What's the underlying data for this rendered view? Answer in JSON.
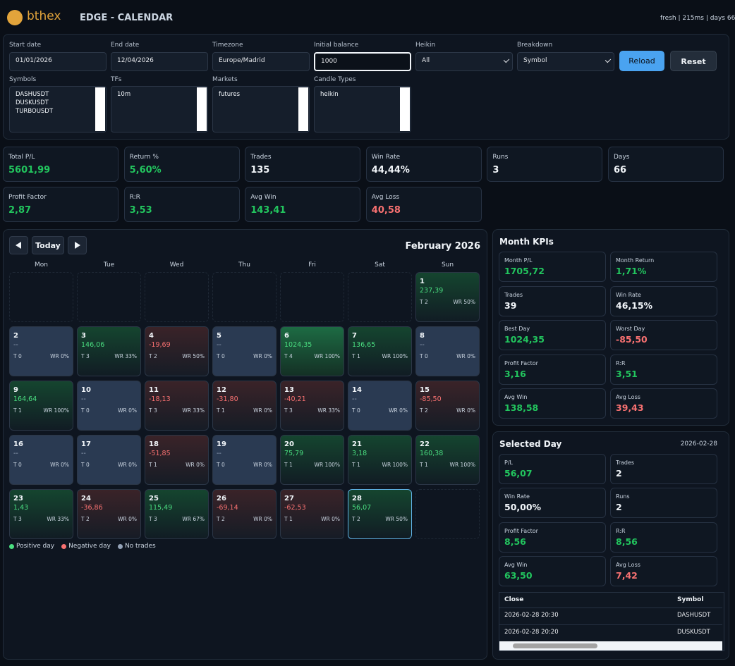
{
  "header": {
    "logo": "bthex",
    "title": "EDGE - CALENDAR",
    "status": "fresh | 215ms | days 66"
  },
  "filters": {
    "fields": [
      {
        "label": "Start date",
        "value": "01/01/2026"
      },
      {
        "label": "End date",
        "value": "12/04/2026"
      },
      {
        "label": "Timezone",
        "value": "Europe/Madrid"
      },
      {
        "label": "Initial balance",
        "value": "1000"
      },
      {
        "label": "Heikin",
        "value": "All"
      },
      {
        "label": "Breakdown",
        "value": "Symbol"
      }
    ],
    "buttons": [
      "Reload",
      "Reset"
    ],
    "lists": [
      {
        "label": "Symbols",
        "items": [
          "DASHUSDT",
          "DUSKUSDT",
          "TURBOUSDT"
        ]
      },
      {
        "label": "TFs",
        "items": [
          "10m"
        ]
      },
      {
        "label": "Markets",
        "items": [
          "futures"
        ]
      },
      {
        "label": "Candle Types",
        "items": [
          "heikin"
        ]
      }
    ]
  },
  "kpis": [
    {
      "label": "Total P/L",
      "value": "5601,99",
      "color": "#22c55e"
    },
    {
      "label": "Return %",
      "value": "5,60%",
      "color": "#22c55e"
    },
    {
      "label": "Trades",
      "value": "135",
      "color": "#f1f5f9"
    },
    {
      "label": "Win Rate",
      "value": "44,44%",
      "color": "#f1f5f9"
    },
    {
      "label": "Runs",
      "value": "3",
      "color": "#f1f5f9"
    },
    {
      "label": "Days",
      "value": "66",
      "color": "#f1f5f9"
    },
    {
      "label": "Profit Factor",
      "value": "2,87",
      "color": "#22c55e"
    },
    {
      "label": "R:R",
      "value": "3,53",
      "color": "#22c55e"
    },
    {
      "label": "Avg Win",
      "value": "143,41",
      "color": "#22c55e"
    },
    {
      "label": "Avg Loss",
      "value": "40,58",
      "color": "#f87171"
    }
  ],
  "calendar": {
    "today": "Today",
    "month": "February 2026",
    "weekdays": [
      "Mon",
      "Tue",
      "Wed",
      "Thu",
      "Fri",
      "Sat",
      "Sun"
    ],
    "days": [
      {
        "d": "1",
        "pl": "237,39",
        "t": "T 2",
        "wr": "WR 50%"
      },
      {
        "d": "2",
        "pl": "--",
        "t": "T 0",
        "wr": "WR 0%"
      },
      {
        "d": "3",
        "pl": "146,06",
        "t": "T 3",
        "wr": "WR 33%"
      },
      {
        "d": "4",
        "pl": "-19,69",
        "t": "T 2",
        "wr": "WR 50%"
      },
      {
        "d": "5",
        "pl": "--",
        "t": "T 0",
        "wr": "WR 0%"
      },
      {
        "d": "6",
        "pl": "1024,35",
        "t": "T 4",
        "wr": "WR 100%"
      },
      {
        "d": "7",
        "pl": "136,65",
        "t": "T 1",
        "wr": "WR 100%"
      },
      {
        "d": "8",
        "pl": "--",
        "t": "T 0",
        "wr": "WR 0%"
      },
      {
        "d": "9",
        "pl": "164,64",
        "t": "T 1",
        "wr": "WR 100%"
      },
      {
        "d": "10",
        "pl": "--",
        "t": "T 0",
        "wr": "WR 0%"
      },
      {
        "d": "11",
        "pl": "-18,13",
        "t": "T 3",
        "wr": "WR 33%"
      },
      {
        "d": "12",
        "pl": "-31,80",
        "t": "T 1",
        "wr": "WR 0%"
      },
      {
        "d": "13",
        "pl": "-40,21",
        "t": "T 3",
        "wr": "WR 33%"
      },
      {
        "d": "14",
        "pl": "--",
        "t": "T 0",
        "wr": "WR 0%"
      },
      {
        "d": "15",
        "pl": "-85,50",
        "t": "T 2",
        "wr": "WR 0%"
      },
      {
        "d": "16",
        "pl": "--",
        "t": "T 0",
        "wr": "WR 0%"
      },
      {
        "d": "17",
        "pl": "--",
        "t": "T 0",
        "wr": "WR 0%"
      },
      {
        "d": "18",
        "pl": "-51,85",
        "t": "T 1",
        "wr": "WR 0%"
      },
      {
        "d": "19",
        "pl": "--",
        "t": "T 0",
        "wr": "WR 0%"
      },
      {
        "d": "20",
        "pl": "75,79",
        "t": "T 1",
        "wr": "WR 100%"
      },
      {
        "d": "21",
        "pl": "3,18",
        "t": "T 1",
        "wr": "WR 100%"
      },
      {
        "d": "22",
        "pl": "160,38",
        "t": "T 1",
        "wr": "WR 100%"
      },
      {
        "d": "23",
        "pl": "1,43",
        "t": "T 3",
        "wr": "WR 33%"
      },
      {
        "d": "24",
        "pl": "-36,86",
        "t": "T 2",
        "wr": "WR 0%"
      },
      {
        "d": "25",
        "pl": "115,49",
        "t": "T 3",
        "wr": "WR 67%"
      },
      {
        "d": "26",
        "pl": "-69,14",
        "t": "T 2",
        "wr": "WR 0%"
      },
      {
        "d": "27",
        "pl": "-62,53",
        "t": "T 1",
        "wr": "WR 0%"
      },
      {
        "d": "28",
        "pl": "56,07",
        "t": "T 2",
        "wr": "WR 50%"
      }
    ],
    "legend": [
      "Positive day",
      "Negative day",
      "No trades"
    ]
  },
  "month_kpis": {
    "title": "Month KPIs",
    "items": [
      {
        "label": "Month P/L",
        "value": "1705,72",
        "color": "#22c55e"
      },
      {
        "label": "Month Return",
        "value": "1,71%",
        "color": "#22c55e"
      },
      {
        "label": "Trades",
        "value": "39",
        "color": "#f1f5f9"
      },
      {
        "label": "Win Rate",
        "value": "46,15%",
        "color": "#f1f5f9"
      },
      {
        "label": "Best Day",
        "value": "1024,35",
        "color": "#22c55e"
      },
      {
        "label": "Worst Day",
        "value": "-85,50",
        "color": "#f87171"
      },
      {
        "label": "Profit Factor",
        "value": "3,16",
        "color": "#22c55e"
      },
      {
        "label": "R:R",
        "value": "3,51",
        "color": "#22c55e"
      },
      {
        "label": "Avg Win",
        "value": "138,58",
        "color": "#22c55e"
      },
      {
        "label": "Avg Loss",
        "value": "39,43",
        "color": "#f87171"
      }
    ]
  },
  "selected_day": {
    "title": "Selected Day",
    "date": "2026-02-28",
    "items": [
      {
        "label": "P/L",
        "value": "56,07",
        "color": "#22c55e"
      },
      {
        "label": "Trades",
        "value": "2",
        "color": "#f1f5f9"
      },
      {
        "label": "Win Rate",
        "value": "50,00%",
        "color": "#f1f5f9"
      },
      {
        "label": "Runs",
        "value": "2",
        "color": "#f1f5f9"
      },
      {
        "label": "Profit Factor",
        "value": "8,56",
        "color": "#22c55e"
      },
      {
        "label": "R:R",
        "value": "8,56",
        "color": "#22c55e"
      },
      {
        "label": "Avg Win",
        "value": "63,50",
        "color": "#22c55e"
      },
      {
        "label": "Avg Loss",
        "value": "7,42",
        "color": "#f87171"
      }
    ],
    "table": {
      "columns": [
        "Close",
        "Symbol"
      ],
      "rows": [
        [
          "2026-02-28 20:30",
          "DASHUSDT"
        ],
        [
          "2026-02-28 20:20",
          "DUSKUSDT"
        ]
      ]
    }
  }
}
